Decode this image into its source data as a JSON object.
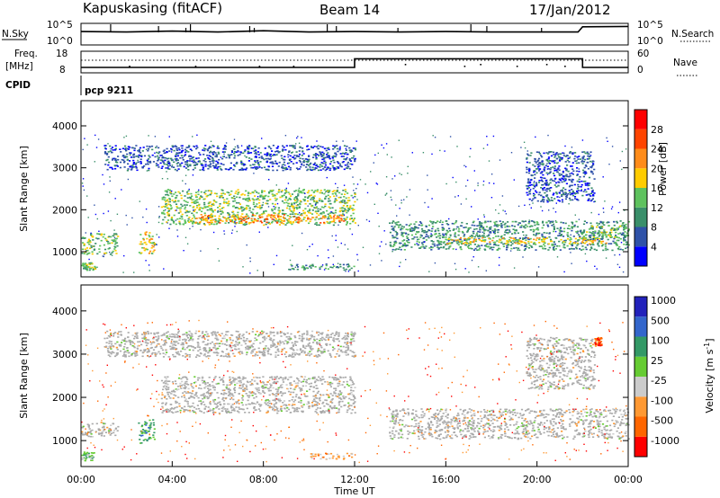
{
  "header": {
    "title": "Kapuskasing (fitACF)",
    "beam": "Beam 14",
    "date": "17/Jan/2012"
  },
  "status_strip": {
    "nsky_label": "N.Sky",
    "nsky_ticks": [
      "10^5",
      "10^0"
    ],
    "nsearch_label": "N.Search",
    "nsearch_ticks": [
      "10^5",
      "10^0"
    ],
    "freq_label_1": "Freq.",
    "freq_label_2": "[MHz]",
    "freq_ticks": [
      "18",
      "8"
    ],
    "nave_label": "Nave",
    "nave_ticks": [
      "60",
      "0"
    ],
    "cpid_label": "CPID",
    "cpid_value": "pcp 9211"
  },
  "colors": {
    "power": [
      "#0000ff",
      "#2f52a8",
      "#3a8f6a",
      "#5ec25e",
      "#ffcc00",
      "#ff8c1a",
      "#ff4400",
      "#ff0000"
    ],
    "velocity": [
      "#ff0000",
      "#ff6600",
      "#ff9933",
      "#cccccc",
      "#66cc33",
      "#339966",
      "#3366cc",
      "#2222bb"
    ],
    "ground_scatter": "#aaaaaa"
  },
  "chart_data": [
    {
      "type": "heatmap",
      "name": "power-panel",
      "xlabel": "",
      "ylabel": "Slant Range [km]",
      "ylim": [
        400,
        4600
      ],
      "xlim": [
        0,
        24
      ],
      "y_ticks": [
        "1000",
        "2000",
        "3000",
        "4000"
      ],
      "y_tick_values": [
        1000,
        2000,
        3000,
        4000
      ],
      "colorbar": {
        "label": "Power [dB]",
        "tick_labels": [
          "4",
          "8",
          "12",
          "16",
          "20",
          "24",
          "28"
        ],
        "tick_values": [
          4,
          8,
          12,
          16,
          20,
          24,
          28
        ],
        "range": [
          0,
          32
        ]
      },
      "echo_regions": [
        {
          "t0": 1.0,
          "t1": 5.0,
          "r0": 2950,
          "r1": 3550,
          "level": 1
        },
        {
          "t0": 5.0,
          "t1": 12.0,
          "r0": 2950,
          "r1": 3550,
          "level": 1
        },
        {
          "t0": 3.5,
          "t1": 12.0,
          "r0": 1650,
          "r1": 2500,
          "level": 3
        },
        {
          "t0": 5.0,
          "t1": 11.5,
          "r0": 1700,
          "r1": 1900,
          "level": 5
        },
        {
          "t0": 0.0,
          "t1": 1.6,
          "r0": 950,
          "r1": 1450,
          "level": 3
        },
        {
          "t0": 2.5,
          "t1": 3.2,
          "r0": 950,
          "r1": 1500,
          "level": 4
        },
        {
          "t0": 9.0,
          "t1": 12.0,
          "r0": 580,
          "r1": 720,
          "level": 2
        },
        {
          "t0": 0.0,
          "t1": 0.6,
          "r0": 550,
          "r1": 750,
          "level": 3
        },
        {
          "t0": 13.5,
          "t1": 24.0,
          "r0": 1050,
          "r1": 1750,
          "level": 2
        },
        {
          "t0": 16.0,
          "t1": 23.0,
          "r0": 1200,
          "r1": 1350,
          "level": 4
        },
        {
          "t0": 22.0,
          "t1": 24.0,
          "r0": 1300,
          "r1": 1650,
          "level": 3
        },
        {
          "t0": 19.5,
          "t1": 22.5,
          "r0": 2200,
          "r1": 3400,
          "level": 1
        }
      ]
    },
    {
      "type": "heatmap",
      "name": "velocity-panel",
      "xlabel": "Time UT",
      "ylabel": "Slant Range [km]",
      "ylim": [
        400,
        4600
      ],
      "xlim": [
        0,
        24
      ],
      "x_ticks": [
        "00:00",
        "04:00",
        "08:00",
        "12:00",
        "16:00",
        "20:00",
        "00:00"
      ],
      "x_tick_values": [
        0,
        4,
        8,
        12,
        16,
        20,
        24
      ],
      "y_ticks": [
        "1000",
        "2000",
        "3000",
        "4000"
      ],
      "y_tick_values": [
        1000,
        2000,
        3000,
        4000
      ],
      "colorbar": {
        "label": "Velocity [m s-1]",
        "label_main": "Velocity [m s",
        "label_sup": "-1",
        "label_end": "]",
        "tick_labels": [
          "-1000",
          "-500",
          "-100",
          "-25",
          "25",
          "100",
          "500",
          "1000"
        ],
        "range": [
          -1500,
          1500
        ]
      },
      "echo_regions": [
        {
          "t0": 1.0,
          "t1": 12.0,
          "r0": 2950,
          "r1": 3550,
          "level": 3,
          "gs": true
        },
        {
          "t0": 3.5,
          "t1": 12.0,
          "r0": 1650,
          "r1": 2500,
          "level": 3,
          "gs": true
        },
        {
          "t0": 0.0,
          "t1": 1.6,
          "r0": 1100,
          "r1": 1450,
          "level": 3,
          "gs": true
        },
        {
          "t0": 2.5,
          "t1": 3.2,
          "r0": 950,
          "r1": 1500,
          "level": 5
        },
        {
          "t0": 0.0,
          "t1": 0.6,
          "r0": 550,
          "r1": 750,
          "level": 4
        },
        {
          "t0": 10.0,
          "t1": 12.0,
          "r0": 580,
          "r1": 720,
          "level": 2
        },
        {
          "t0": 13.5,
          "t1": 24.0,
          "r0": 1050,
          "r1": 1750,
          "level": 3,
          "gs": true
        },
        {
          "t0": 19.5,
          "t1": 22.5,
          "r0": 2200,
          "r1": 3400,
          "level": 3,
          "gs": true
        },
        {
          "t0": 22.5,
          "t1": 22.8,
          "r0": 3200,
          "r1": 3400,
          "level": 1
        }
      ]
    }
  ],
  "nsky_series": {
    "x": [
      0,
      2,
      4,
      6,
      8,
      10,
      12,
      14,
      16,
      18,
      20,
      21.8,
      22,
      24
    ],
    "y": [
      3.1,
      3.0,
      3.2,
      3.0,
      3.3,
      3.0,
      3.1,
      3.0,
      3.1,
      3.0,
      3.0,
      3.0,
      4.2,
      4.3
    ]
  },
  "freq_series": {
    "x": [
      0,
      12,
      12,
      22,
      22,
      24
    ],
    "y": [
      10.5,
      10.5,
      14.5,
      14.5,
      10.5,
      10.5
    ]
  }
}
